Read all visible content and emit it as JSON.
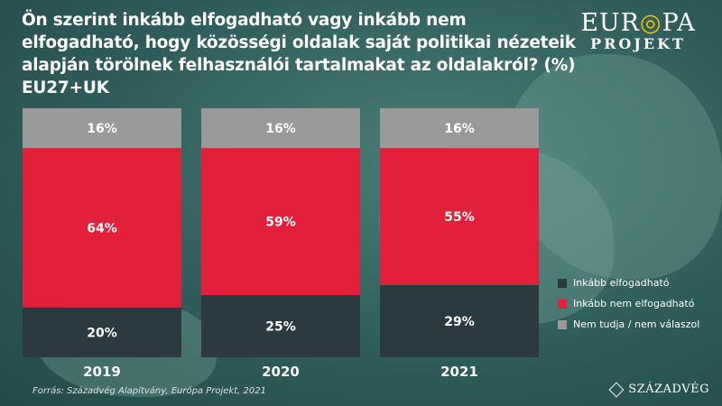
{
  "header": {
    "title": "Ön szerint inkább elfogadható vagy inkább nem elfogadható, hogy közösségi oldalak saját politikai nézeteik alapján törölnek felhasználói tartalmakat az oldalakról? (%) EU27+UK"
  },
  "logo": {
    "line1_a": "EUR",
    "line1_b": "PA",
    "line2": "PROJEKT"
  },
  "footer": {
    "source": "Forrás: Századvég Alapítvány, Európa Projekt, 2021",
    "brand": "SZÁZADVÉG"
  },
  "colors": {
    "accept": "#2b3a40",
    "reject": "#e2203a",
    "unknown": "#9a9a9a"
  },
  "chart_data": {
    "type": "bar",
    "stacked": true,
    "categories": [
      "2019",
      "2020",
      "2021"
    ],
    "ylim": [
      0,
      100
    ],
    "series": [
      {
        "name": "Inkább elfogadható",
        "values": [
          20,
          25,
          29
        ],
        "labels": [
          "20%",
          "25%",
          "29%"
        ]
      },
      {
        "name": "Inkább nem elfogadható",
        "values": [
          64,
          59,
          55
        ],
        "labels": [
          "64%",
          "59%",
          "55%"
        ]
      },
      {
        "name": "Nem tudja / nem válaszol",
        "values": [
          16,
          16,
          16
        ],
        "labels": [
          "16%",
          "16%",
          "16%"
        ]
      }
    ],
    "legend_position": "right"
  }
}
